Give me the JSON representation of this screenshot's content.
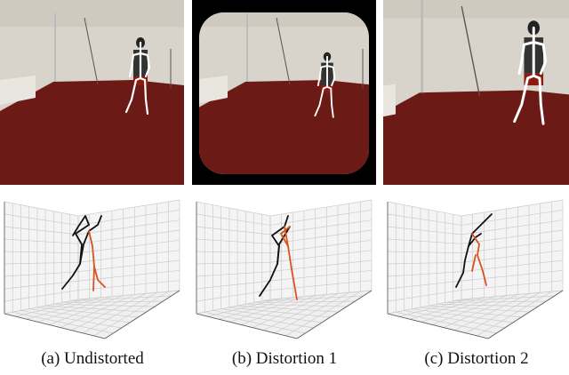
{
  "panels": [
    {
      "caption": "(a) Undistorted"
    },
    {
      "caption": "(b) Distortion 1"
    },
    {
      "caption": "(c) Distortion 2"
    }
  ]
}
